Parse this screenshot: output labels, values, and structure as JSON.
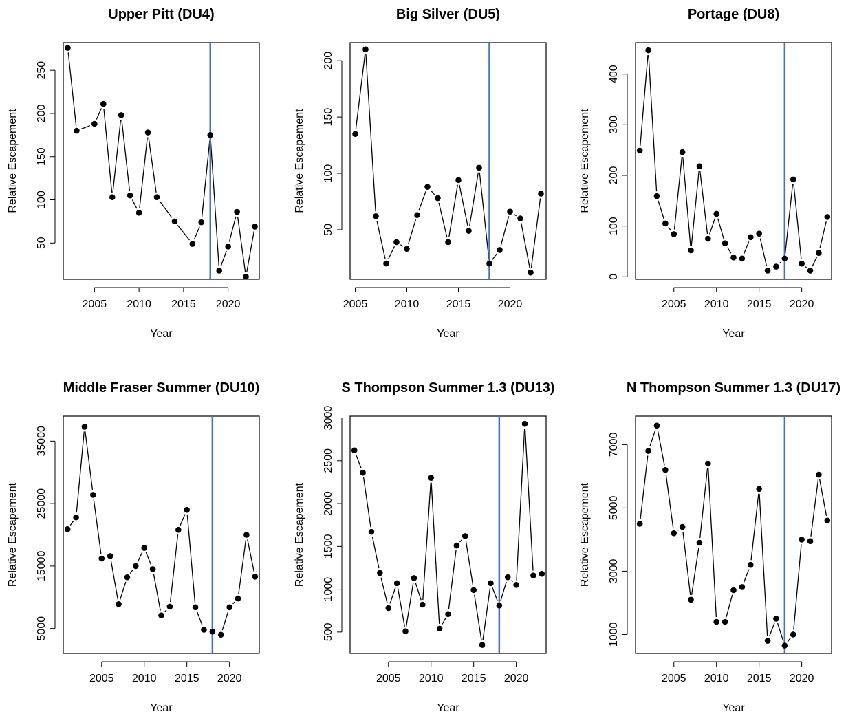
{
  "chart_data": [
    {
      "type": "line",
      "title": "Upper Pitt (DU4)",
      "xlabel": "Year",
      "ylabel": "Relative Escapement",
      "xlim": [
        2001.5,
        2023.5
      ],
      "ylim": [
        8,
        282
      ],
      "xticks": [
        2005,
        2010,
        2015,
        2020
      ],
      "yticks": [
        50,
        100,
        150,
        200,
        250
      ],
      "vline": 2018,
      "vline_color": "#4472C4",
      "x": [
        2002,
        2003,
        2005,
        2006,
        2007,
        2008,
        2009,
        2010,
        2011,
        2012,
        2014,
        2016,
        2017,
        2018,
        2019,
        2020,
        2021,
        2022,
        2023
      ],
      "y": [
        276,
        180,
        188,
        211,
        103,
        198,
        105,
        85,
        178,
        103,
        75,
        49,
        74,
        175,
        18,
        46,
        86,
        11,
        69
      ]
    },
    {
      "type": "line",
      "title": "Big Silver (DU5)",
      "xlabel": "Year",
      "ylabel": "Relative Escapement",
      "xlim": [
        2004.5,
        2023.5
      ],
      "ylim": [
        6,
        216
      ],
      "xticks": [
        2005,
        2010,
        2015,
        2020
      ],
      "yticks": [
        50,
        100,
        150,
        200
      ],
      "vline": 2018,
      "vline_color": "#4472C4",
      "x": [
        2005,
        2006,
        2007,
        2008,
        2009,
        2010,
        2011,
        2012,
        2013,
        2014,
        2015,
        2016,
        2017,
        2018,
        2019,
        2020,
        2021,
        2022,
        2023
      ],
      "y": [
        135,
        210,
        62,
        20,
        39,
        33,
        63,
        88,
        78,
        39,
        94,
        49,
        105,
        20,
        32,
        66,
        60,
        12,
        82
      ]
    },
    {
      "type": "line",
      "title": "Portage (DU8)",
      "xlabel": "Year",
      "ylabel": "Relative Escapement",
      "xlim": [
        2000.5,
        2023.5
      ],
      "ylim": [
        -5,
        462
      ],
      "xticks": [
        2005,
        2010,
        2015,
        2020
      ],
      "yticks": [
        0,
        100,
        200,
        300,
        400
      ],
      "vline": 2018,
      "vline_color": "#4472C4",
      "x": [
        2001,
        2002,
        2003,
        2004,
        2005,
        2006,
        2007,
        2008,
        2009,
        2010,
        2011,
        2012,
        2013,
        2014,
        2015,
        2016,
        2017,
        2018,
        2019,
        2020,
        2021,
        2022,
        2023
      ],
      "y": [
        249,
        447,
        159,
        105,
        84,
        246,
        52,
        218,
        75,
        124,
        66,
        38,
        36,
        78,
        85,
        12,
        20,
        36,
        192,
        26,
        12,
        47,
        118
      ]
    },
    {
      "type": "line",
      "title": "Middle Fraser Summer (DU10)",
      "xlabel": "Year",
      "ylabel": "Relative Escapement",
      "xlim": [
        2000.5,
        2023.5
      ],
      "ylim": [
        1000,
        39000
      ],
      "xticks": [
        2005,
        2010,
        2015,
        2020
      ],
      "yticks": [
        5000,
        15000,
        25000,
        35000
      ],
      "vline": 2018,
      "vline_color": "#4472C4",
      "x": [
        2001,
        2002,
        2003,
        2004,
        2005,
        2006,
        2007,
        2008,
        2009,
        2010,
        2011,
        2012,
        2013,
        2014,
        2015,
        2016,
        2017,
        2018,
        2019,
        2020,
        2021,
        2022,
        2023
      ],
      "y": [
        20900,
        22800,
        37300,
        26400,
        16200,
        16600,
        8900,
        13200,
        15000,
        17900,
        14500,
        7100,
        8500,
        20800,
        24000,
        8400,
        4800,
        4500,
        4000,
        8400,
        9800,
        20000,
        13300
      ]
    },
    {
      "type": "line",
      "title": "S Thompson Summer 1.3 (DU13)",
      "xlabel": "Year",
      "ylabel": "Relative Escapement",
      "xlim": [
        2000.5,
        2023.5
      ],
      "ylim": [
        250,
        3020
      ],
      "xticks": [
        2005,
        2010,
        2015,
        2020
      ],
      "yticks": [
        500,
        1000,
        1500,
        2000,
        2500,
        3000
      ],
      "vline": 2018,
      "vline_color": "#4472C4",
      "x": [
        2001,
        2002,
        2003,
        2004,
        2005,
        2006,
        2007,
        2008,
        2009,
        2010,
        2011,
        2012,
        2013,
        2014,
        2015,
        2016,
        2017,
        2018,
        2019,
        2020,
        2021,
        2022,
        2023
      ],
      "y": [
        2620,
        2360,
        1670,
        1190,
        780,
        1070,
        510,
        1130,
        820,
        2300,
        540,
        710,
        1510,
        1620,
        990,
        350,
        1070,
        810,
        1140,
        1050,
        2930,
        1160,
        1180
      ]
    },
    {
      "type": "line",
      "title": "N Thompson Summer 1.3 (DU17)",
      "xlabel": "Year",
      "ylabel": "Relative Escapement",
      "xlim": [
        2000.5,
        2023.5
      ],
      "ylim": [
        400,
        7900
      ],
      "xticks": [
        2005,
        2010,
        2015,
        2020
      ],
      "yticks": [
        1000,
        3000,
        5000,
        7000
      ],
      "vline": 2018,
      "vline_color": "#4472C4",
      "x": [
        2001,
        2002,
        2003,
        2004,
        2005,
        2006,
        2007,
        2008,
        2009,
        2010,
        2011,
        2012,
        2013,
        2014,
        2015,
        2016,
        2017,
        2018,
        2019,
        2020,
        2021,
        2022,
        2023
      ],
      "y": [
        4500,
        6800,
        7600,
        6200,
        4200,
        4400,
        2100,
        3900,
        6400,
        1400,
        1400,
        2400,
        2500,
        3200,
        5600,
        800,
        1500,
        650,
        1000,
        4000,
        3950,
        6050,
        4600
      ]
    }
  ]
}
